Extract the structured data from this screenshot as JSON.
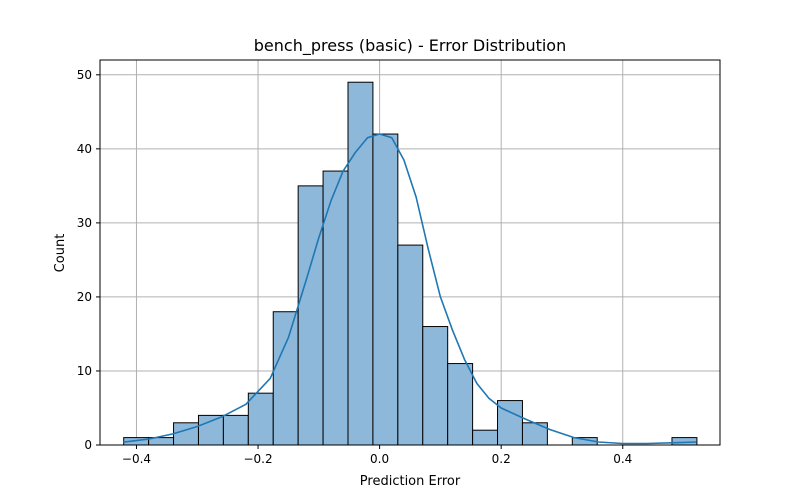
{
  "chart_data": {
    "type": "histogram",
    "title": "bench_press (basic) - Error Distribution",
    "xlabel": "Prediction Error",
    "ylabel": "Count",
    "xlim": [
      -0.46,
      0.56
    ],
    "ylim": [
      0,
      52
    ],
    "grid": true,
    "xticks": [
      -0.4,
      -0.2,
      0.0,
      0.2,
      0.4
    ],
    "xtick_labels": [
      "−0.4",
      "−0.2",
      "0.0",
      "0.2",
      "0.4"
    ],
    "yticks": [
      0,
      10,
      20,
      30,
      40,
      50
    ],
    "ytick_labels": [
      "0",
      "10",
      "20",
      "30",
      "40",
      "50"
    ],
    "bins": [
      {
        "x0": -0.421,
        "x1": -0.38,
        "count": 1
      },
      {
        "x0": -0.38,
        "x1": -0.339,
        "count": 1
      },
      {
        "x0": -0.339,
        "x1": -0.298,
        "count": 3
      },
      {
        "x0": -0.298,
        "x1": -0.257,
        "count": 4
      },
      {
        "x0": -0.257,
        "x1": -0.216,
        "count": 4
      },
      {
        "x0": -0.216,
        "x1": -0.175,
        "count": 7
      },
      {
        "x0": -0.175,
        "x1": -0.134,
        "count": 18
      },
      {
        "x0": -0.134,
        "x1": -0.093,
        "count": 35
      },
      {
        "x0": -0.093,
        "x1": -0.052,
        "count": 37
      },
      {
        "x0": -0.052,
        "x1": -0.011,
        "count": 49
      },
      {
        "x0": -0.011,
        "x1": 0.03,
        "count": 42
      },
      {
        "x0": 0.03,
        "x1": 0.071,
        "count": 27
      },
      {
        "x0": 0.071,
        "x1": 0.112,
        "count": 16
      },
      {
        "x0": 0.112,
        "x1": 0.153,
        "count": 11
      },
      {
        "x0": 0.153,
        "x1": 0.194,
        "count": 2
      },
      {
        "x0": 0.194,
        "x1": 0.235,
        "count": 6
      },
      {
        "x0": 0.235,
        "x1": 0.276,
        "count": 3
      },
      {
        "x0": 0.276,
        "x1": 0.317,
        "count": 0
      },
      {
        "x0": 0.317,
        "x1": 0.358,
        "count": 1
      },
      {
        "x0": 0.358,
        "x1": 0.399,
        "count": 0
      },
      {
        "x0": 0.399,
        "x1": 0.44,
        "count": 0
      },
      {
        "x0": 0.44,
        "x1": 0.481,
        "count": 0
      },
      {
        "x0": 0.481,
        "x1": 0.522,
        "count": 1
      }
    ],
    "kde": {
      "x": [
        -0.42,
        -0.38,
        -0.34,
        -0.3,
        -0.26,
        -0.22,
        -0.18,
        -0.15,
        -0.12,
        -0.1,
        -0.08,
        -0.06,
        -0.04,
        -0.02,
        0.0,
        0.02,
        0.04,
        0.06,
        0.08,
        0.1,
        0.12,
        0.14,
        0.16,
        0.18,
        0.2,
        0.24,
        0.28,
        0.32,
        0.36,
        0.4,
        0.44,
        0.48,
        0.52
      ],
      "y": [
        0.4,
        0.8,
        1.5,
        2.5,
        3.8,
        5.5,
        9.0,
        14.5,
        22.5,
        28.0,
        33.0,
        37.0,
        39.5,
        41.5,
        42.0,
        41.5,
        38.5,
        33.5,
        26.5,
        20.0,
        15.5,
        11.5,
        8.3,
        6.3,
        5.0,
        3.5,
        2.1,
        1.0,
        0.4,
        0.2,
        0.2,
        0.3,
        0.4
      ]
    },
    "colors": {
      "bar_fill": "#8db8da",
      "bar_edge": "#000000",
      "kde_line": "#1f77b4",
      "grid": "#b0b0b0",
      "axis": "#000000"
    }
  }
}
